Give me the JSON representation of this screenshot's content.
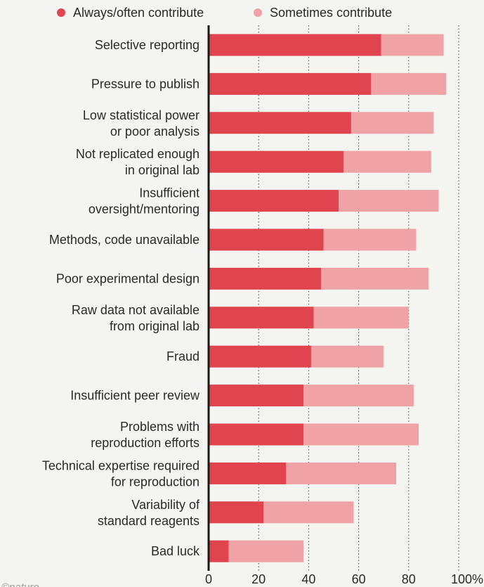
{
  "chart_data": {
    "type": "bar",
    "orientation": "horizontal",
    "stacked": true,
    "categories": [
      [
        "Selective reporting"
      ],
      [
        "Pressure to publish"
      ],
      [
        "Low statistical power",
        "or poor analysis"
      ],
      [
        "Not replicated enough",
        "in original lab"
      ],
      [
        "Insufficient",
        "oversight/mentoring"
      ],
      [
        "Methods, code unavailable"
      ],
      [
        "Poor experimental design"
      ],
      [
        "Raw data not available",
        "from original lab"
      ],
      [
        "Fraud"
      ],
      [
        "Insufficient peer review"
      ],
      [
        "Problems with",
        "reproduction efforts"
      ],
      [
        "Technical expertise required",
        "for reproduction"
      ],
      [
        "Variability of",
        "standard reagents"
      ],
      [
        "Bad luck"
      ]
    ],
    "series": [
      {
        "name": "Always/often contribute",
        "color": "#e0454f",
        "values": [
          69,
          65,
          57,
          54,
          52,
          46,
          45,
          42,
          41,
          38,
          38,
          31,
          22,
          8
        ]
      },
      {
        "name": "Sometimes contribute",
        "color": "#f0a3a6",
        "values": [
          25,
          30,
          33,
          35,
          40,
          37,
          43,
          38,
          29,
          44,
          46,
          44,
          36,
          30
        ]
      }
    ],
    "xlim": [
      0,
      100
    ],
    "xticks": [
      "0",
      "20",
      "40",
      "60",
      "80",
      "100%"
    ],
    "xlabel": "",
    "ylabel": "",
    "legend": "top",
    "grid": "vertical dotted"
  },
  "watermark": "©nature"
}
